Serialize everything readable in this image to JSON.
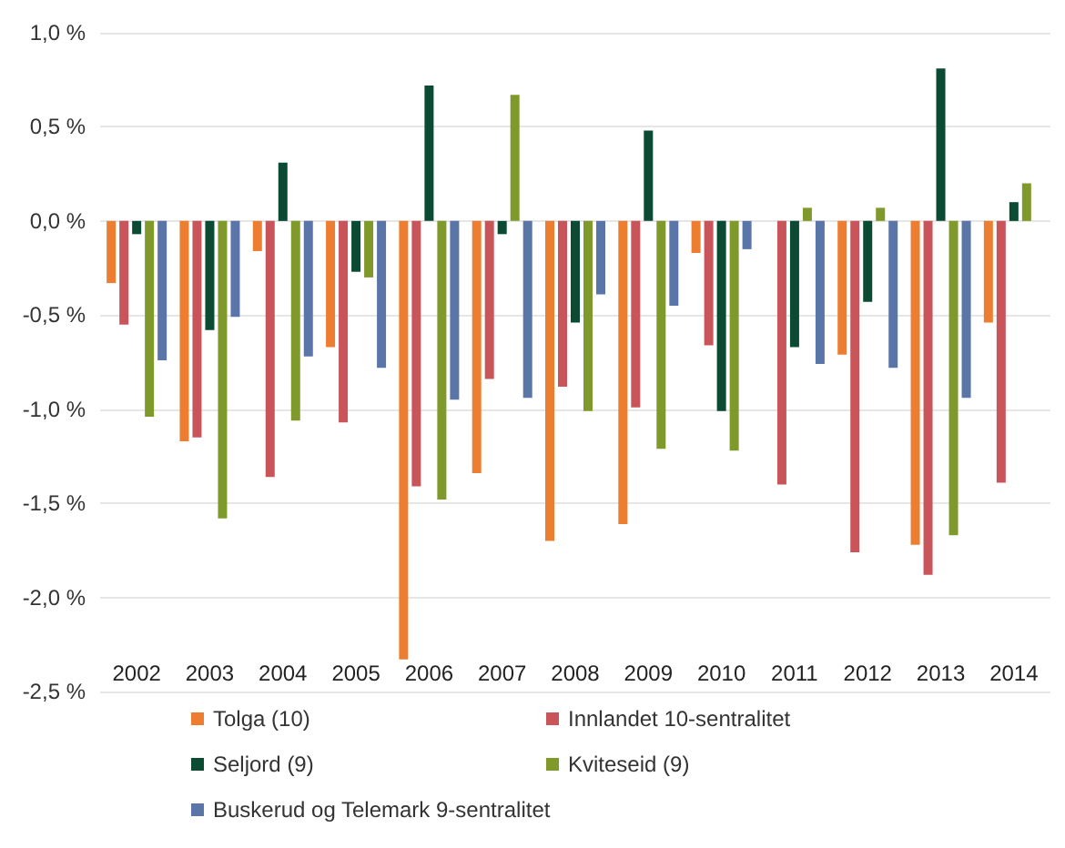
{
  "chart_data": {
    "type": "bar",
    "categories": [
      "2002",
      "2003",
      "2004",
      "2005",
      "2006",
      "2007",
      "2008",
      "2009",
      "2010",
      "2011",
      "2012",
      "2013",
      "2014"
    ],
    "series": [
      {
        "name": "Tolga (10)",
        "color": "#ed7d31",
        "values": [
          -0.33,
          -1.17,
          -0.16,
          -0.67,
          -2.33,
          -1.34,
          -1.7,
          -1.61,
          -0.17,
          0,
          -0.71,
          -1.72,
          -0.54
        ]
      },
      {
        "name": "Innlandet 10-sentralitet",
        "color": "#c9545a",
        "values": [
          -0.55,
          -1.15,
          -1.36,
          -1.07,
          -1.41,
          -0.84,
          -0.88,
          -0.99,
          -0.66,
          -1.4,
          -1.76,
          -1.88,
          -1.39
        ]
      },
      {
        "name": "Seljord (9)",
        "color": "#0b4a33",
        "values": [
          -0.07,
          -0.58,
          0.31,
          -0.27,
          0.72,
          -0.07,
          -0.54,
          0.48,
          -1.01,
          -0.67,
          -0.43,
          0.81,
          0.1
        ]
      },
      {
        "name": "Kviteseid (9)",
        "color": "#7f9a2b",
        "values": [
          -1.04,
          -1.58,
          -1.06,
          -0.3,
          -1.48,
          0.67,
          -1.01,
          -1.21,
          -1.22,
          0.07,
          0.07,
          -1.67,
          0.2
        ]
      },
      {
        "name": "Buskerud og Telemark 9-sentralitet",
        "color": "#5a76a8",
        "values": [
          -0.74,
          -0.51,
          -0.72,
          -0.78,
          -0.95,
          -0.94,
          -0.39,
          -0.45,
          -0.15,
          -0.76,
          -0.78,
          -0.94,
          null
        ]
      }
    ],
    "ylim": [
      -2.5,
      1.0
    ],
    "yticks": [
      {
        "value": -2.5,
        "label": "-2,5 %"
      },
      {
        "value": -2.0,
        "label": "-2,0 %"
      },
      {
        "value": -1.5,
        "label": "-1,5 %"
      },
      {
        "value": -1.0,
        "label": "-1,0 %"
      },
      {
        "value": -0.5,
        "label": "-0,5 %"
      },
      {
        "value": 0,
        "label": "0,0 %"
      },
      {
        "value": 0.5,
        "label": "0,5 %"
      },
      {
        "value": 1.0,
        "label": "1,0 %"
      }
    ],
    "grid": "y",
    "legend": "bottom"
  }
}
